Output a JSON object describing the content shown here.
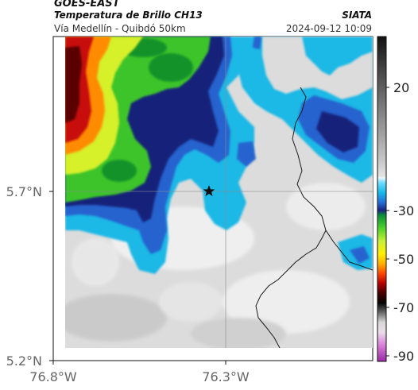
{
  "header": {
    "source": "GOES-EAST",
    "product": "Temperatura de Brillo CH13",
    "route": "Vía Medellín - Quibdó 50km",
    "brand": "SIATA",
    "datetime": "2024-09-12 10:09"
  },
  "map": {
    "lat_ticks": [
      {
        "value": 5.7,
        "label": "5.7°N"
      },
      {
        "value": 5.2,
        "label": "5.2°N"
      }
    ],
    "lon_ticks": [
      {
        "value": -76.8,
        "label": "76.8°W"
      },
      {
        "value": -76.3,
        "label": "76.3°W"
      }
    ],
    "marker": {
      "symbol": "star",
      "lat": 5.7,
      "lon": -76.34
    }
  },
  "colorbar": {
    "ticks": [
      {
        "value": 20,
        "label": "20"
      },
      {
        "value": -30,
        "label": "-30"
      },
      {
        "value": -50,
        "label": "-50"
      },
      {
        "value": -70,
        "label": "-70"
      },
      {
        "value": -90,
        "label": "-90"
      }
    ]
  }
}
